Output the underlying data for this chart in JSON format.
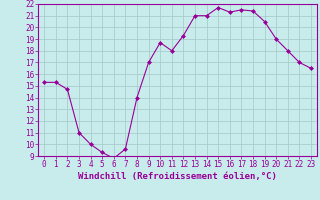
{
  "x": [
    0,
    1,
    2,
    3,
    4,
    5,
    6,
    7,
    8,
    9,
    10,
    11,
    12,
    13,
    14,
    15,
    16,
    17,
    18,
    19,
    20,
    21,
    22,
    23
  ],
  "y": [
    15.3,
    15.3,
    14.7,
    11.0,
    10.0,
    9.3,
    8.8,
    9.6,
    14.0,
    17.0,
    18.7,
    18.0,
    19.3,
    21.0,
    21.0,
    21.7,
    21.3,
    21.5,
    21.4,
    20.5,
    19.0,
    18.0,
    17.0,
    16.5
  ],
  "line_color": "#990099",
  "marker": "D",
  "marker_size": 2,
  "bg_color": "#c8ecec",
  "grid_color": "#aacccc",
  "xlabel": "Windchill (Refroidissement éolien,°C)",
  "xlim": [
    -0.5,
    23.5
  ],
  "ylim": [
    9,
    22
  ],
  "yticks": [
    9,
    10,
    11,
    12,
    13,
    14,
    15,
    16,
    17,
    18,
    19,
    20,
    21,
    22
  ],
  "xticks": [
    0,
    1,
    2,
    3,
    4,
    5,
    6,
    7,
    8,
    9,
    10,
    11,
    12,
    13,
    14,
    15,
    16,
    17,
    18,
    19,
    20,
    21,
    22,
    23
  ],
  "axis_color": "#990099",
  "tick_label_fontsize": 5.5,
  "xlabel_fontsize": 6.5
}
